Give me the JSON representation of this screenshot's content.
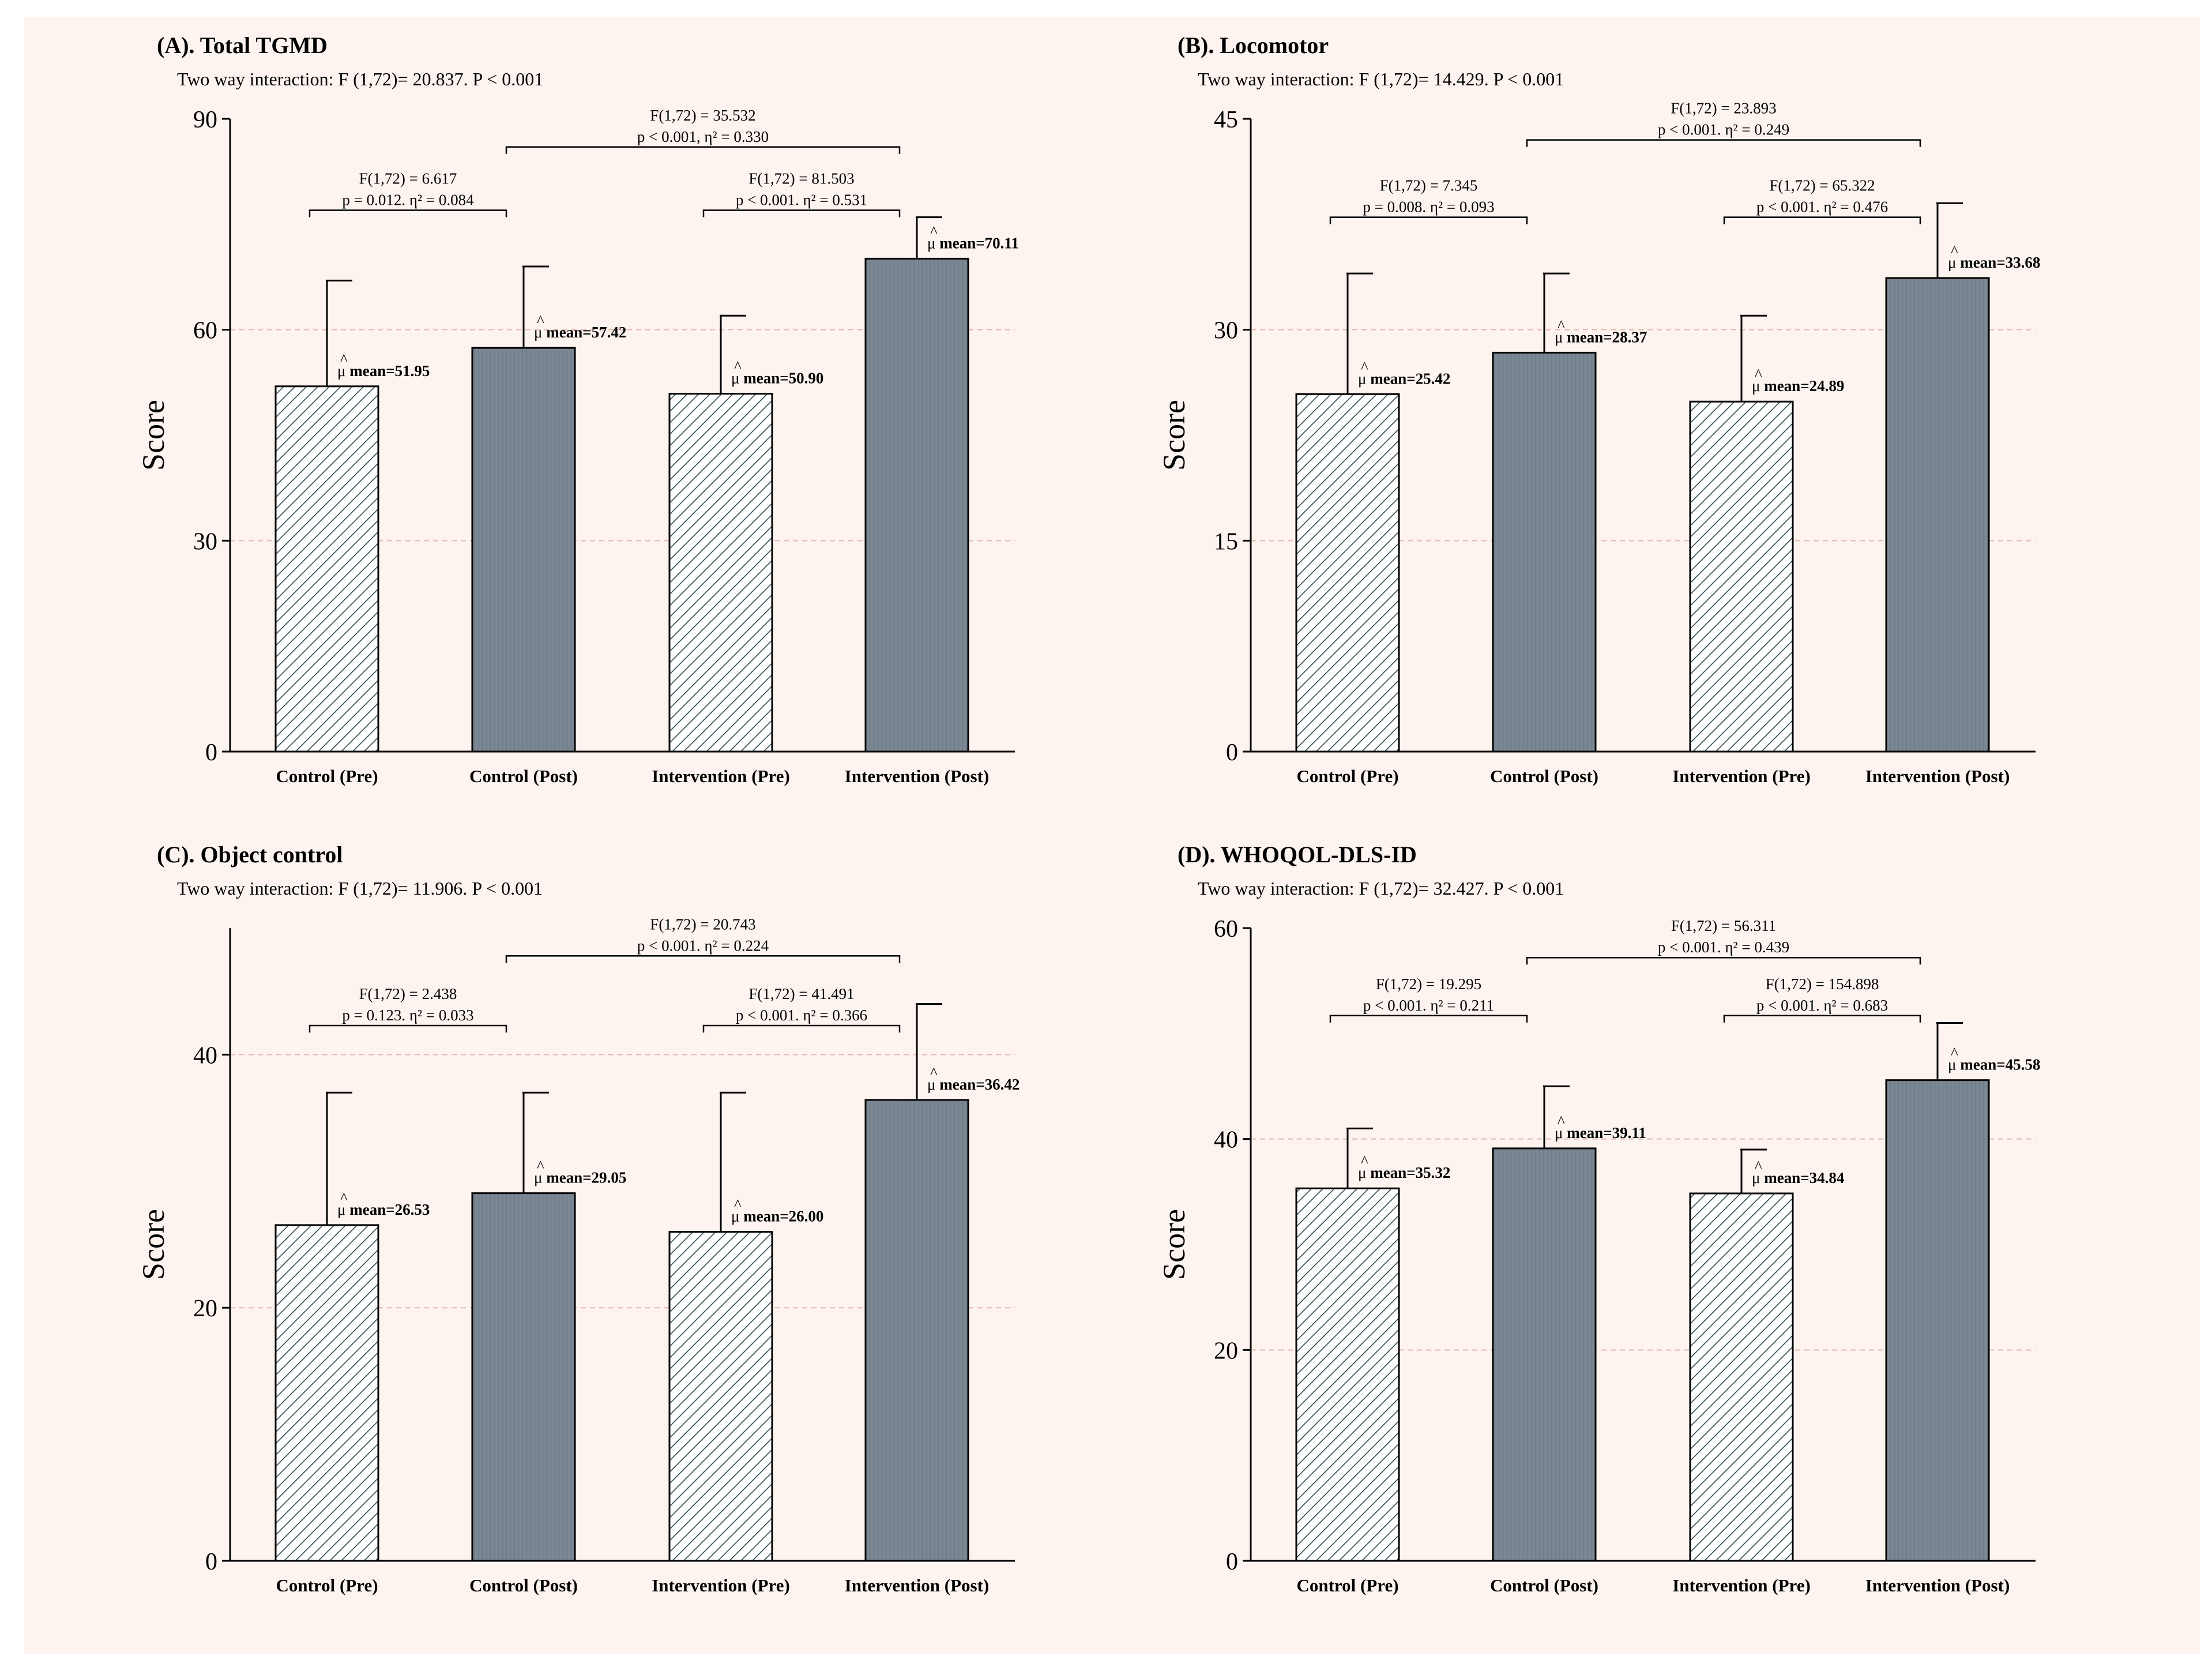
{
  "chart_data": [
    {
      "type": "bar",
      "title": "(A). Total TGMD",
      "subtitle": "Two way interaction: F (1,72)= 20.837. P < 0.001",
      "ylabel": "Score",
      "ylim": [
        0,
        90
      ],
      "yticks": [
        "0",
        "30",
        "60",
        "90"
      ],
      "gridlines_at": [
        30,
        60
      ],
      "categories": [
        "Control  (Pre)",
        "Control  (Post)",
        "Intervention (Pre)",
        "Intervention  (Post)"
      ],
      "values": [
        51.95,
        57.42,
        50.9,
        70.11
      ],
      "error_upper": [
        67,
        69,
        62,
        76
      ],
      "mean_labels": [
        "mean=51.95",
        "mean=57.42",
        "mean=50.90",
        "mean=70.11"
      ],
      "brackets": [
        {
          "from": 0,
          "to": 1,
          "level": 77,
          "line1": "F(1,72) = 6.617",
          "line2": "p = 0.012. η² = 0.084"
        },
        {
          "from": 2,
          "to": 3,
          "level": 77,
          "line1": "F(1,72) = 81.503",
          "line2": "p < 0.001. η² = 0.531"
        },
        {
          "from": 1,
          "to": 3,
          "level": 86,
          "line1": "F(1,72) = 35.532",
          "line2": "p < 0.001, η² = 0.330"
        }
      ]
    },
    {
      "type": "bar",
      "title": "(B). Locomotor",
      "subtitle": "Two way interaction: F (1,72)= 14.429. P < 0.001",
      "ylabel": "Score",
      "ylim": [
        0,
        45
      ],
      "yticks": [
        "0",
        "15",
        "30",
        "45"
      ],
      "gridlines_at": [
        15,
        30
      ],
      "categories": [
        "Control  (Pre)",
        "Control  (Post)",
        "Intervention (Pre)",
        "Intervention  (Post)"
      ],
      "values": [
        25.42,
        28.37,
        24.89,
        33.68
      ],
      "error_upper": [
        34,
        34,
        31,
        39
      ],
      "mean_labels": [
        "mean=25.42",
        "mean=28.37",
        "mean=24.89",
        "mean=33.68"
      ],
      "brackets": [
        {
          "from": 0,
          "to": 1,
          "level": 38,
          "line1": "F(1,72) = 7.345",
          "line2": "p = 0.008. η² = 0.093"
        },
        {
          "from": 2,
          "to": 3,
          "level": 38,
          "line1": "F(1,72) = 65.322",
          "line2": "p < 0.001. η² = 0.476"
        },
        {
          "from": 1,
          "to": 3,
          "level": 43.5,
          "line1": "F(1,72) = 23.893",
          "line2": "p < 0.001. η² = 0.249"
        }
      ]
    },
    {
      "type": "bar",
      "title": "(C). Object control",
      "subtitle": "Two way interaction: F (1,72)= 11.906. P < 0.001",
      "ylabel": "Score",
      "ylim": [
        0,
        50
      ],
      "yticks": [
        "0",
        "20",
        "40"
      ],
      "gridlines_at": [
        20,
        40
      ],
      "categories": [
        "Control  (Pre)",
        "Control  (Post)",
        "Intervention (Pre)",
        "Intervention  (Post)"
      ],
      "values": [
        26.53,
        29.05,
        26.0,
        36.42
      ],
      "error_upper": [
        37,
        37,
        37,
        44
      ],
      "mean_labels": [
        "mean=26.53",
        "mean=29.05",
        "mean=26.00",
        "mean=36.42"
      ],
      "brackets": [
        {
          "from": 0,
          "to": 1,
          "level": 42.3,
          "line1": "F(1,72) = 2.438",
          "line2": "p = 0.123. η² = 0.033"
        },
        {
          "from": 2,
          "to": 3,
          "level": 42.3,
          "line1": "F(1,72) = 41.491",
          "line2": "p < 0.001. η² = 0.366"
        },
        {
          "from": 1,
          "to": 3,
          "level": 47.8,
          "line1": "F(1,72) = 20.743",
          "line2": "p < 0.001. η² = 0.224"
        }
      ]
    },
    {
      "type": "bar",
      "title": "(D). WHOQOL-DLS-ID",
      "subtitle": "Two way interaction: F (1,72)= 32.427. P < 0.001",
      "ylabel": "Score",
      "ylim": [
        0,
        60
      ],
      "yticks": [
        "0",
        "20",
        "40",
        "60"
      ],
      "gridlines_at": [
        20,
        40
      ],
      "categories": [
        "Control  (Pre)",
        "Control  (Post)",
        "Intervention (Pre)",
        "Intervention  (Post)"
      ],
      "values": [
        35.32,
        39.11,
        34.84,
        45.58
      ],
      "error_upper": [
        41,
        45,
        39,
        51
      ],
      "mean_labels": [
        "mean=35.32",
        "mean=39.11",
        "mean=34.84",
        "mean=45.58"
      ],
      "brackets": [
        {
          "from": 0,
          "to": 1,
          "level": 51.7,
          "line1": "F(1,72) = 19.295",
          "line2": "p < 0.001. η² = 0.211"
        },
        {
          "from": 2,
          "to": 3,
          "level": 51.7,
          "line1": "F(1,72) = 154.898",
          "line2": "p < 0.001. η² = 0.683"
        },
        {
          "from": 1,
          "to": 3,
          "level": 57.2,
          "line1": "F(1,72) = 56.311",
          "line2": "p < 0.001. η² = 0.439"
        }
      ]
    }
  ],
  "colors": {
    "background": "#fdf4ef",
    "solid_bar": "#7b8793",
    "hatch_bar_fill": "#ffffff",
    "hatch_line": "#2e4a52",
    "grid": "#e3b6b0",
    "axis": "#000000"
  }
}
